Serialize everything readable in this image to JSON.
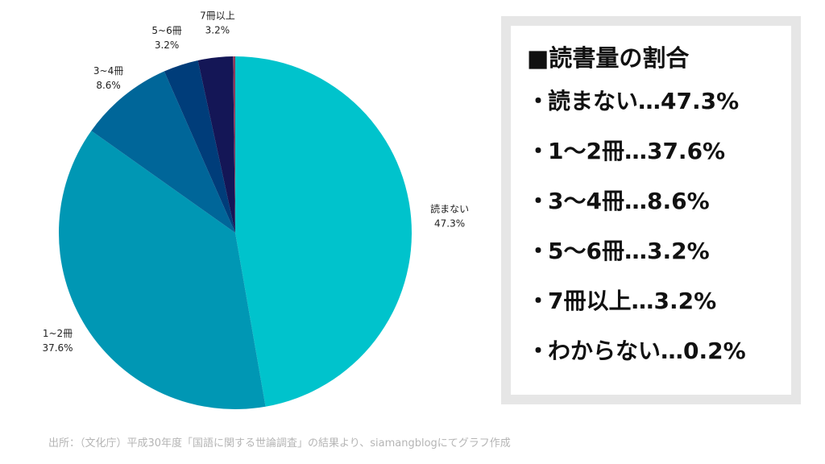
{
  "chart_data": {
    "type": "pie",
    "slices": [
      {
        "label": "読まない",
        "value": 47.3,
        "value_label": "47.3%",
        "color": "#00c3cc"
      },
      {
        "label": "1~2冊",
        "value": 37.6,
        "value_label": "37.6%",
        "color": "#0097b4"
      },
      {
        "label": "3~4冊",
        "value": 8.6,
        "value_label": "8.6%",
        "color": "#006699"
      },
      {
        "label": "5~6冊",
        "value": 3.2,
        "value_label": "3.2%",
        "color": "#003d7a"
      },
      {
        "label": "7冊以上",
        "value": 3.2,
        "value_label": "3.2%",
        "color": "#141656"
      },
      {
        "label": "わからない",
        "value": 0.2,
        "value_label": "",
        "color": "#8e3b5a"
      }
    ]
  },
  "legend": {
    "title": "■読書量の割合",
    "bullet": "・",
    "items": [
      "読まない…47.3%",
      "1〜2冊…37.6%",
      "3〜4冊…8.6%",
      "5〜6冊…3.2%",
      "7冊以上…3.2%",
      "わからない…0.2%"
    ]
  },
  "source": "出所：（文化庁）平成30年度「国語に関する世論調査」の結果より、siamangblogにてグラフ作成"
}
